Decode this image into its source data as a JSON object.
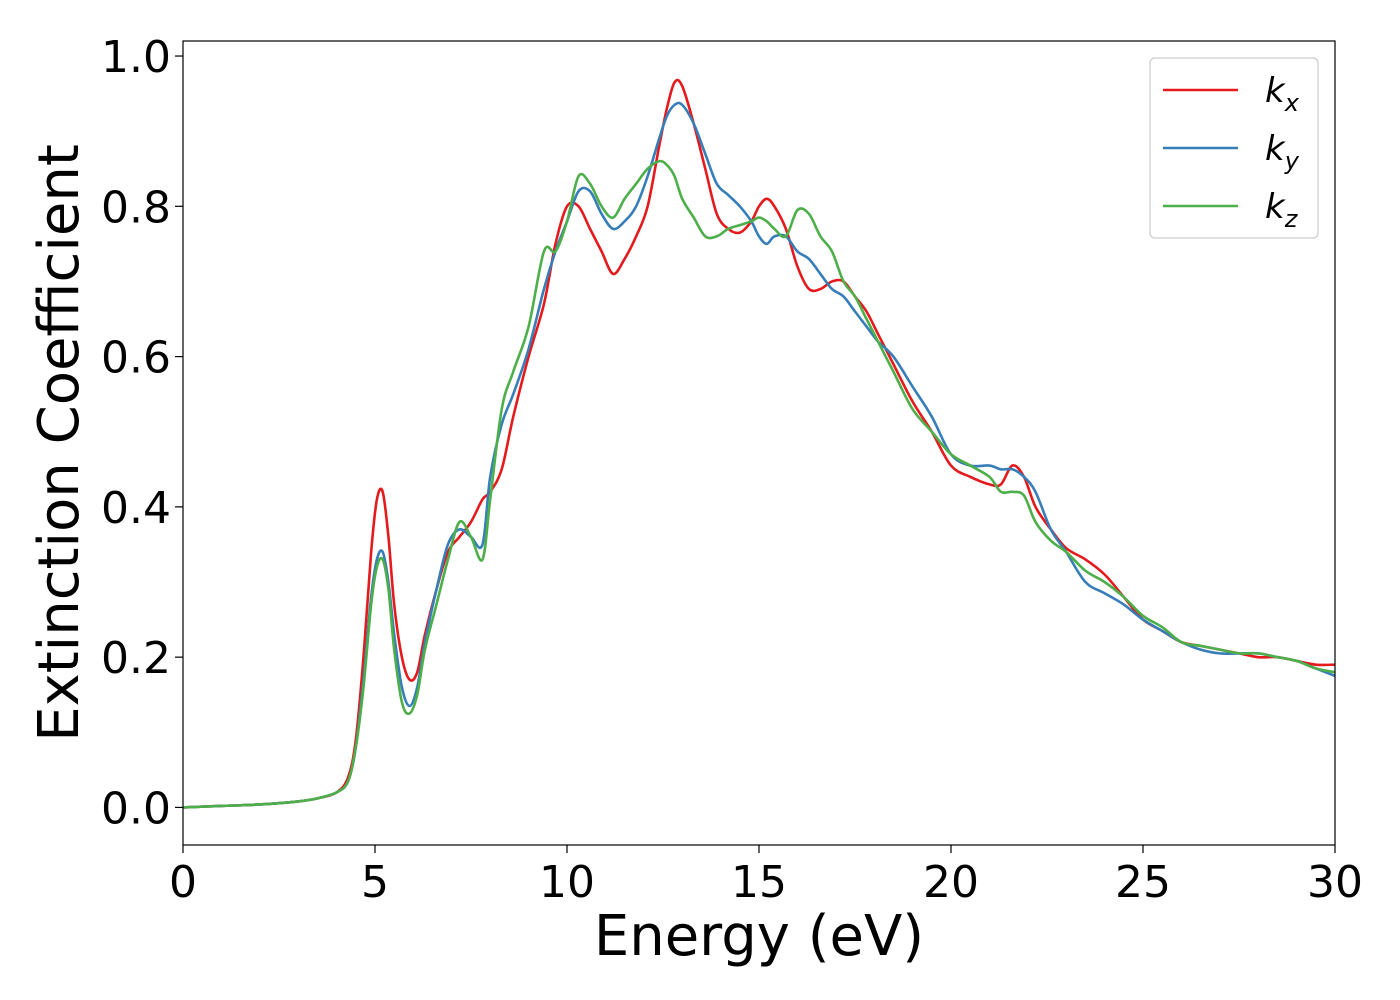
{
  "chart_data": {
    "type": "line",
    "xlabel": "Energy (eV)",
    "ylabel": "Extinction Coefficient",
    "xlim": [
      0,
      30
    ],
    "ylim": [
      -0.05,
      1.02
    ],
    "xticks": [
      0,
      5,
      10,
      15,
      20,
      25,
      30
    ],
    "xtick_labels": [
      "0",
      "5",
      "10",
      "15",
      "20",
      "25",
      "30"
    ],
    "yticks": [
      0.0,
      0.2,
      0.4,
      0.6,
      0.8,
      1.0
    ],
    "ytick_labels": [
      "0.0",
      "0.2",
      "0.4",
      "0.6",
      "0.8",
      "1.0"
    ],
    "grid": false,
    "legend_position": "top-right",
    "series": [
      {
        "name": "k_x",
        "label_main": "k",
        "label_sub": "x",
        "color": "#e41a1c",
        "x": [
          0,
          1,
          2,
          3,
          3.5,
          4,
          4.3,
          4.5,
          4.7,
          4.9,
          5.05,
          5.2,
          5.35,
          5.5,
          5.7,
          5.9,
          6.1,
          6.3,
          6.6,
          6.9,
          7.2,
          7.5,
          7.8,
          8.0,
          8.3,
          8.6,
          9.0,
          9.4,
          9.7,
          10.0,
          10.3,
          10.6,
          10.9,
          11.2,
          11.5,
          11.8,
          12.1,
          12.4,
          12.6,
          12.8,
          13.0,
          13.3,
          13.6,
          13.9,
          14.2,
          14.5,
          14.8,
          15.0,
          15.2,
          15.4,
          15.7,
          16.0,
          16.3,
          16.6,
          16.9,
          17.2,
          17.5,
          17.8,
          18.1,
          18.5,
          19.0,
          19.5,
          20.0,
          20.5,
          21.0,
          21.3,
          21.6,
          21.9,
          22.2,
          22.6,
          23.0,
          23.5,
          24.0,
          24.5,
          25.0,
          25.5,
          26.0,
          26.5,
          27.0,
          27.5,
          28.0,
          28.5,
          29.0,
          29.5,
          30.0
        ],
        "values": [
          0.0,
          0.002,
          0.004,
          0.008,
          0.012,
          0.02,
          0.04,
          0.09,
          0.2,
          0.34,
          0.41,
          0.42,
          0.36,
          0.27,
          0.2,
          0.17,
          0.18,
          0.23,
          0.29,
          0.34,
          0.36,
          0.38,
          0.41,
          0.42,
          0.45,
          0.52,
          0.6,
          0.67,
          0.75,
          0.8,
          0.8,
          0.77,
          0.74,
          0.71,
          0.73,
          0.76,
          0.8,
          0.88,
          0.93,
          0.965,
          0.96,
          0.91,
          0.85,
          0.79,
          0.77,
          0.765,
          0.78,
          0.8,
          0.81,
          0.8,
          0.77,
          0.72,
          0.69,
          0.69,
          0.7,
          0.7,
          0.68,
          0.66,
          0.63,
          0.59,
          0.54,
          0.5,
          0.455,
          0.44,
          0.43,
          0.43,
          0.455,
          0.44,
          0.4,
          0.37,
          0.345,
          0.33,
          0.31,
          0.28,
          0.25,
          0.235,
          0.22,
          0.215,
          0.21,
          0.205,
          0.2,
          0.2,
          0.195,
          0.19,
          0.19
        ]
      },
      {
        "name": "k_y",
        "label_main": "k",
        "label_sub": "y",
        "color": "#377eb8",
        "x": [
          0,
          1,
          2,
          3,
          3.5,
          4,
          4.3,
          4.5,
          4.7,
          4.9,
          5.05,
          5.2,
          5.35,
          5.5,
          5.7,
          5.9,
          6.1,
          6.3,
          6.6,
          6.9,
          7.2,
          7.5,
          7.8,
          8.0,
          8.3,
          8.6,
          9.0,
          9.4,
          9.7,
          10.0,
          10.3,
          10.6,
          10.9,
          11.2,
          11.5,
          11.8,
          12.1,
          12.4,
          12.6,
          12.8,
          13.0,
          13.3,
          13.6,
          13.9,
          14.2,
          14.5,
          14.8,
          15.0,
          15.2,
          15.4,
          15.7,
          16.0,
          16.3,
          16.6,
          16.9,
          17.2,
          17.5,
          17.8,
          18.1,
          18.5,
          19.0,
          19.5,
          20.0,
          20.5,
          21.0,
          21.3,
          21.6,
          21.9,
          22.2,
          22.6,
          23.0,
          23.5,
          24.0,
          24.5,
          25.0,
          25.5,
          26.0,
          26.5,
          27.0,
          27.5,
          28.0,
          28.5,
          29.0,
          29.5,
          30.0
        ],
        "values": [
          0.0,
          0.002,
          0.004,
          0.008,
          0.012,
          0.02,
          0.035,
          0.08,
          0.17,
          0.28,
          0.33,
          0.34,
          0.3,
          0.23,
          0.16,
          0.135,
          0.16,
          0.22,
          0.29,
          0.35,
          0.37,
          0.36,
          0.35,
          0.44,
          0.51,
          0.55,
          0.61,
          0.69,
          0.74,
          0.78,
          0.82,
          0.82,
          0.79,
          0.77,
          0.78,
          0.8,
          0.84,
          0.89,
          0.92,
          0.935,
          0.935,
          0.91,
          0.87,
          0.83,
          0.815,
          0.8,
          0.78,
          0.76,
          0.75,
          0.76,
          0.76,
          0.74,
          0.73,
          0.71,
          0.69,
          0.68,
          0.66,
          0.64,
          0.62,
          0.6,
          0.56,
          0.52,
          0.47,
          0.455,
          0.455,
          0.45,
          0.45,
          0.44,
          0.42,
          0.37,
          0.34,
          0.3,
          0.285,
          0.27,
          0.25,
          0.235,
          0.22,
          0.21,
          0.205,
          0.205,
          0.205,
          0.2,
          0.195,
          0.185,
          0.175
        ]
      },
      {
        "name": "k_z",
        "label_main": "k",
        "label_sub": "z",
        "color": "#4daf4a",
        "x": [
          0,
          1,
          2,
          3,
          3.5,
          4,
          4.3,
          4.5,
          4.7,
          4.9,
          5.05,
          5.2,
          5.35,
          5.5,
          5.7,
          5.9,
          6.1,
          6.3,
          6.6,
          6.9,
          7.2,
          7.5,
          7.8,
          8.0,
          8.3,
          8.6,
          9.0,
          9.4,
          9.7,
          10.0,
          10.3,
          10.6,
          10.9,
          11.2,
          11.5,
          11.8,
          12.1,
          12.4,
          12.6,
          12.8,
          13.0,
          13.3,
          13.6,
          13.9,
          14.2,
          14.5,
          14.8,
          15.0,
          15.2,
          15.4,
          15.7,
          16.0,
          16.3,
          16.6,
          16.9,
          17.2,
          17.5,
          17.8,
          18.1,
          18.5,
          19.0,
          19.5,
          20.0,
          20.5,
          21.0,
          21.3,
          21.6,
          21.9,
          22.2,
          22.6,
          23.0,
          23.5,
          24.0,
          24.5,
          25.0,
          25.5,
          26.0,
          26.5,
          27.0,
          27.5,
          28.0,
          28.5,
          29.0,
          29.5,
          30.0
        ],
        "values": [
          0.0,
          0.002,
          0.004,
          0.008,
          0.012,
          0.02,
          0.035,
          0.08,
          0.16,
          0.27,
          0.32,
          0.33,
          0.29,
          0.21,
          0.14,
          0.125,
          0.15,
          0.21,
          0.27,
          0.33,
          0.38,
          0.36,
          0.33,
          0.41,
          0.53,
          0.58,
          0.64,
          0.74,
          0.74,
          0.78,
          0.84,
          0.83,
          0.8,
          0.785,
          0.81,
          0.83,
          0.85,
          0.86,
          0.855,
          0.84,
          0.81,
          0.785,
          0.76,
          0.76,
          0.77,
          0.775,
          0.78,
          0.785,
          0.78,
          0.77,
          0.76,
          0.795,
          0.79,
          0.76,
          0.74,
          0.7,
          0.68,
          0.65,
          0.62,
          0.58,
          0.53,
          0.5,
          0.47,
          0.455,
          0.44,
          0.42,
          0.42,
          0.415,
          0.38,
          0.355,
          0.34,
          0.315,
          0.3,
          0.28,
          0.255,
          0.24,
          0.22,
          0.215,
          0.21,
          0.205,
          0.205,
          0.2,
          0.195,
          0.185,
          0.18
        ]
      }
    ]
  }
}
